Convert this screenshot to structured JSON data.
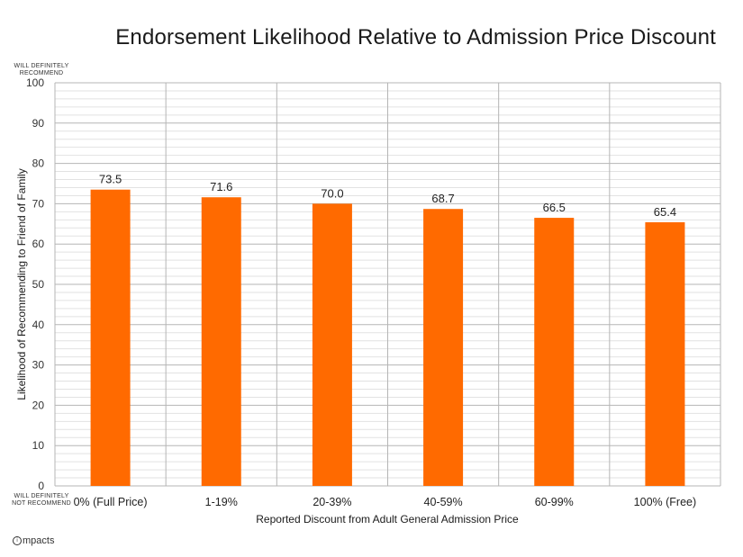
{
  "chart_data": {
    "type": "bar",
    "title": "Endorsement Likelihood Relative to Admission Price Discount",
    "xlabel": "Reported Discount from Adult General Admission Price",
    "ylabel": "Likelihood of Recommending to Friend of Family",
    "categories": [
      "0% (Full Price)",
      "1-19%",
      "20-39%",
      "40-59%",
      "60-99%",
      "100% (Free)"
    ],
    "values": [
      73.5,
      71.6,
      70.0,
      68.7,
      66.5,
      65.4
    ],
    "value_labels": [
      "73.5",
      "71.6",
      "70.0",
      "68.7",
      "66.5",
      "65.4"
    ],
    "ylim": [
      0,
      100
    ],
    "yticks": [
      0,
      10,
      20,
      30,
      40,
      50,
      60,
      70,
      80,
      90,
      100
    ],
    "grid": true,
    "top_annotation": [
      "WILL DEFINITELY",
      "RECOMMEND"
    ],
    "bottom_annotation": [
      "WILL DEFINITELY",
      "NOT RECOMMEND"
    ],
    "bar_color": "#ff6a00"
  },
  "branding": {
    "logo_mark": "i",
    "logo_text": "mpacts"
  }
}
